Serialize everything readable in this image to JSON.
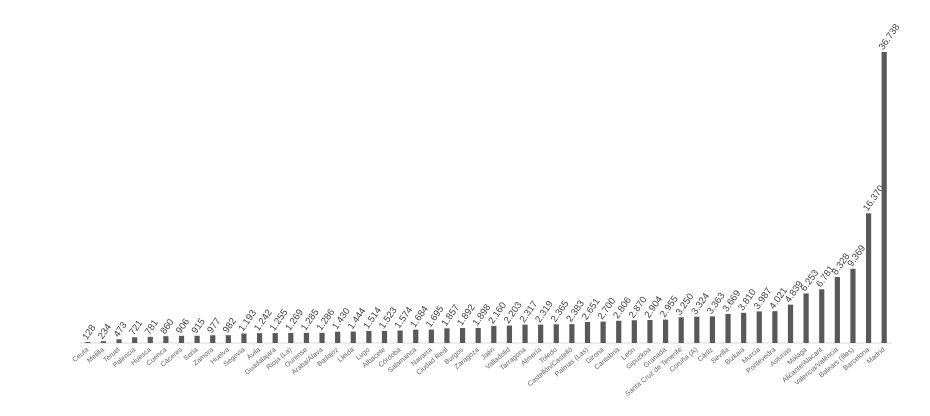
{
  "chart_data": {
    "type": "bar",
    "color": "#595959",
    "categories": [
      "Ceuta",
      "Melilla",
      "Teruel",
      "Palencia",
      "Huesca",
      "Cuenca",
      "Cáceres",
      "Soria",
      "Zamora",
      "Huelva",
      "Segovia",
      "Ávila",
      "Guadalajara",
      "Rioja (La)",
      "Ourense",
      "Araba/Álava",
      "Badajoz",
      "Lleida",
      "Lugo",
      "Albacete",
      "Córdoba",
      "Salamanca",
      "Navarra",
      "Ciudad Real",
      "Burgos",
      "Zaragoza",
      "Jaén",
      "Valladolid",
      "Tarragona",
      "Almería",
      "Toledo",
      "Castellón/Castelló",
      "Palmas (Las)",
      "Girona",
      "Cantabria",
      "León",
      "Gipuzkoa",
      "Granada",
      "Santa Cruz de Tenerife",
      "Coruña (A)",
      "Cádiz",
      "Sevilla",
      "Bizkaia",
      "Murcia",
      "Pontevedra",
      "Asturias",
      "Málaga",
      "Alicante/Alacant",
      "Valencia/València",
      "Balears (Illes)",
      "Barcelona",
      "Madrid"
    ],
    "values": [
      128,
      234,
      473,
      721,
      781,
      860,
      906,
      915,
      977,
      982,
      1193,
      1242,
      1255,
      1269,
      1285,
      1286,
      1430,
      1444,
      1514,
      1523,
      1574,
      1684,
      1695,
      1857,
      1892,
      1898,
      2160,
      2203,
      2317,
      2319,
      2365,
      2383,
      2651,
      2700,
      2806,
      2870,
      2904,
      2955,
      3250,
      3324,
      3363,
      3669,
      3810,
      3987,
      4021,
      4839,
      6253,
      6781,
      8328,
      9369,
      16370,
      36738
    ],
    "value_labels": [
      "128",
      "234",
      "473",
      "721",
      "781",
      "860",
      "906",
      "915",
      "977",
      "982",
      "1.193",
      "1.242",
      "1.255",
      "1.269",
      "1.285",
      "1.286",
      "1.430",
      "1.444",
      "1.514",
      "1.523",
      "1.574",
      "1.684",
      "1.695",
      "1.857",
      "1.892",
      "1.898",
      "2.160",
      "2.203",
      "2.317",
      "2.319",
      "2.365",
      "2.383",
      "2.651",
      "2.700",
      "2.806",
      "2.870",
      "2.904",
      "2.955",
      "3.250",
      "3.324",
      "3.363",
      "3.669",
      "3.810",
      "3.987",
      "4.021",
      "4.839",
      "6.253",
      "6.781",
      "8.328",
      "9.369",
      "16.370",
      "36.738"
    ]
  }
}
